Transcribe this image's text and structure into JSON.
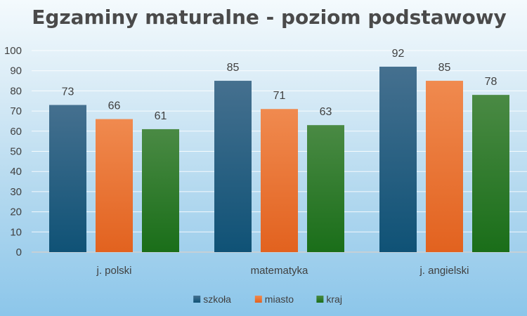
{
  "chart_data": {
    "type": "bar",
    "title": "Egzaminy maturalne - poziom podstawowy",
    "categories": [
      "j. polski",
      "matematyka",
      "j. angielski"
    ],
    "series": [
      {
        "name": "szkoła",
        "values": [
          73,
          85,
          92
        ],
        "color_top": "#45708f",
        "color_bottom": "#0f5276"
      },
      {
        "name": "miasto",
        "values": [
          66,
          71,
          85
        ],
        "color_top": "#f08a4f",
        "color_bottom": "#e2621f"
      },
      {
        "name": "kraj",
        "values": [
          61,
          63,
          78
        ],
        "color_top": "#4a8a44",
        "color_bottom": "#1a6e19"
      }
    ],
    "ylim": [
      0,
      100
    ],
    "yticks": [
      0,
      10,
      20,
      30,
      40,
      50,
      60,
      70,
      80,
      90,
      100
    ],
    "grid": true,
    "legend_position": "bottom",
    "data_labels": true
  }
}
